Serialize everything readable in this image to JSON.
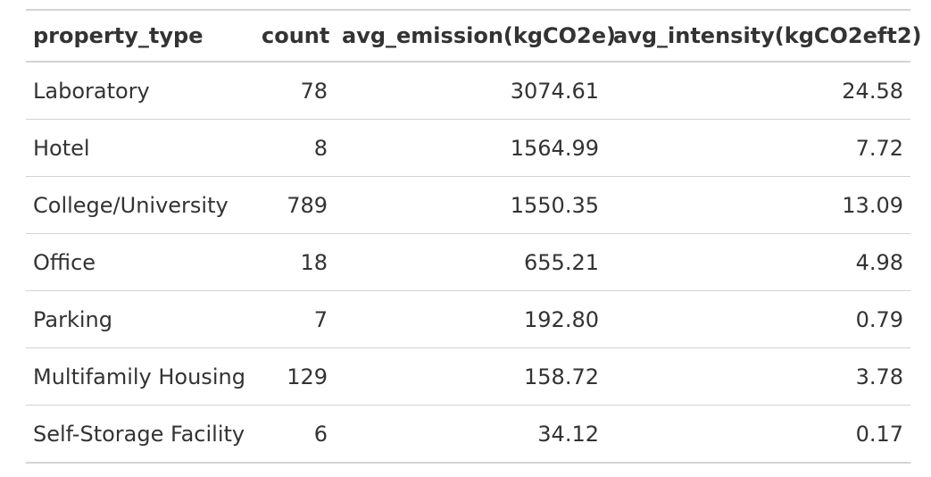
{
  "chart_data": {
    "type": "table",
    "columns": [
      "property_type",
      "count",
      "avg_emission(kgCO2e)",
      "avg_intensity(kgCO2eft2)"
    ],
    "rows": [
      [
        "Laboratory",
        "78",
        "3074.61",
        "24.58"
      ],
      [
        "Hotel",
        "8",
        "1564.99",
        "7.72"
      ],
      [
        "College/University",
        "789",
        "1550.35",
        "13.09"
      ],
      [
        "Office",
        "18",
        "655.21",
        "4.98"
      ],
      [
        "Parking",
        "7",
        "192.80",
        "0.79"
      ],
      [
        "Multifamily Housing",
        "129",
        "158.72",
        "3.78"
      ],
      [
        "Self-Storage Facility",
        "6",
        "34.12",
        "0.17"
      ]
    ],
    "column_align": [
      "left",
      "right",
      "right",
      "right"
    ],
    "colors": {
      "text": "#333333",
      "rule": "#d3d3d3",
      "background": "#ffffff"
    }
  }
}
